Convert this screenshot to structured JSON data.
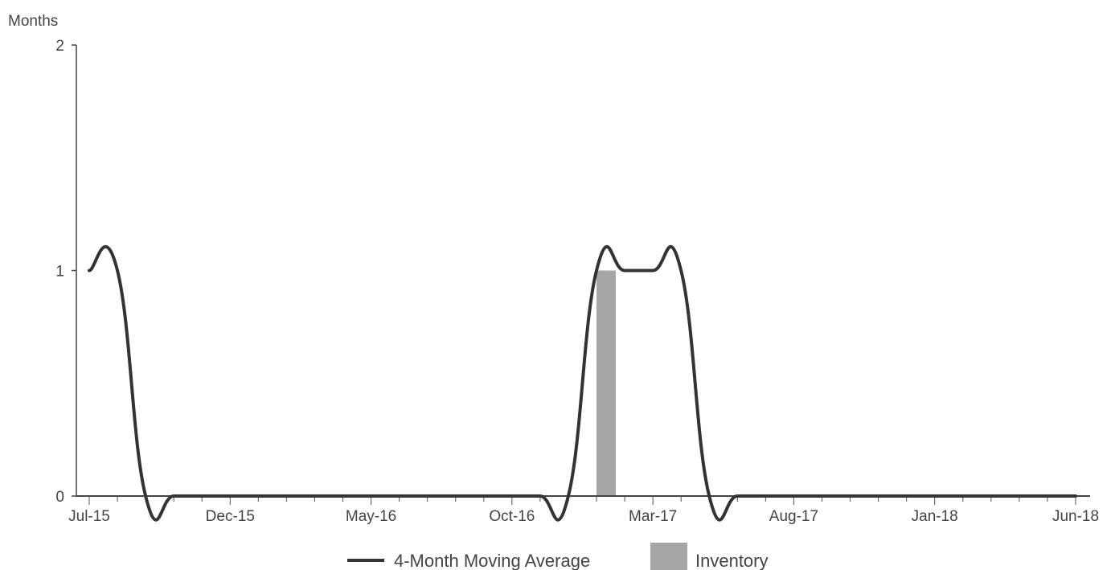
{
  "chart_data": {
    "type": "line",
    "ylabel": "Months",
    "ylim": [
      0,
      2
    ],
    "y_ticks": [
      "0",
      "1",
      "2"
    ],
    "x_tick_labels": [
      "Jul-15",
      "Dec-15",
      "May-16",
      "Oct-16",
      "Mar-17",
      "Aug-17",
      "Jan-18",
      "Jun-18"
    ],
    "x": [
      "Jul-15",
      "Aug-15",
      "Sep-15",
      "Oct-15",
      "Nov-15",
      "Dec-15",
      "Jan-16",
      "Feb-16",
      "Mar-16",
      "Apr-16",
      "May-16",
      "Jun-16",
      "Jul-16",
      "Aug-16",
      "Sep-16",
      "Oct-16",
      "Nov-16",
      "Dec-16",
      "Jan-17",
      "Feb-17",
      "Mar-17",
      "Apr-17",
      "May-17",
      "Jun-17",
      "Jul-17",
      "Aug-17",
      "Sep-17",
      "Oct-17",
      "Nov-17",
      "Dec-17",
      "Jan-18",
      "Feb-18",
      "Mar-18",
      "Apr-18",
      "May-18",
      "Jun-18"
    ],
    "series": [
      {
        "name": "4-Month Moving Average",
        "kind": "line",
        "color": "#333333",
        "values": [
          1,
          1,
          0,
          0,
          0,
          0,
          0,
          0,
          0,
          0,
          0,
          0,
          0,
          0,
          0,
          0,
          0,
          0,
          1,
          1,
          1,
          1,
          0,
          0,
          0,
          0,
          0,
          0,
          0,
          0,
          0,
          0,
          0,
          0,
          0,
          0
        ]
      },
      {
        "name": "Inventory",
        "kind": "bar",
        "color": "#a6a6a8",
        "values": [
          0,
          0,
          0,
          0,
          0,
          0,
          0,
          0,
          0,
          0,
          0,
          0,
          0,
          0,
          0,
          0,
          0,
          0,
          1,
          0,
          0,
          0,
          0,
          0,
          0,
          0,
          0,
          0,
          0,
          0,
          0,
          0,
          0,
          0,
          0,
          0
        ]
      }
    ],
    "legend": "bottom",
    "grid": false
  }
}
